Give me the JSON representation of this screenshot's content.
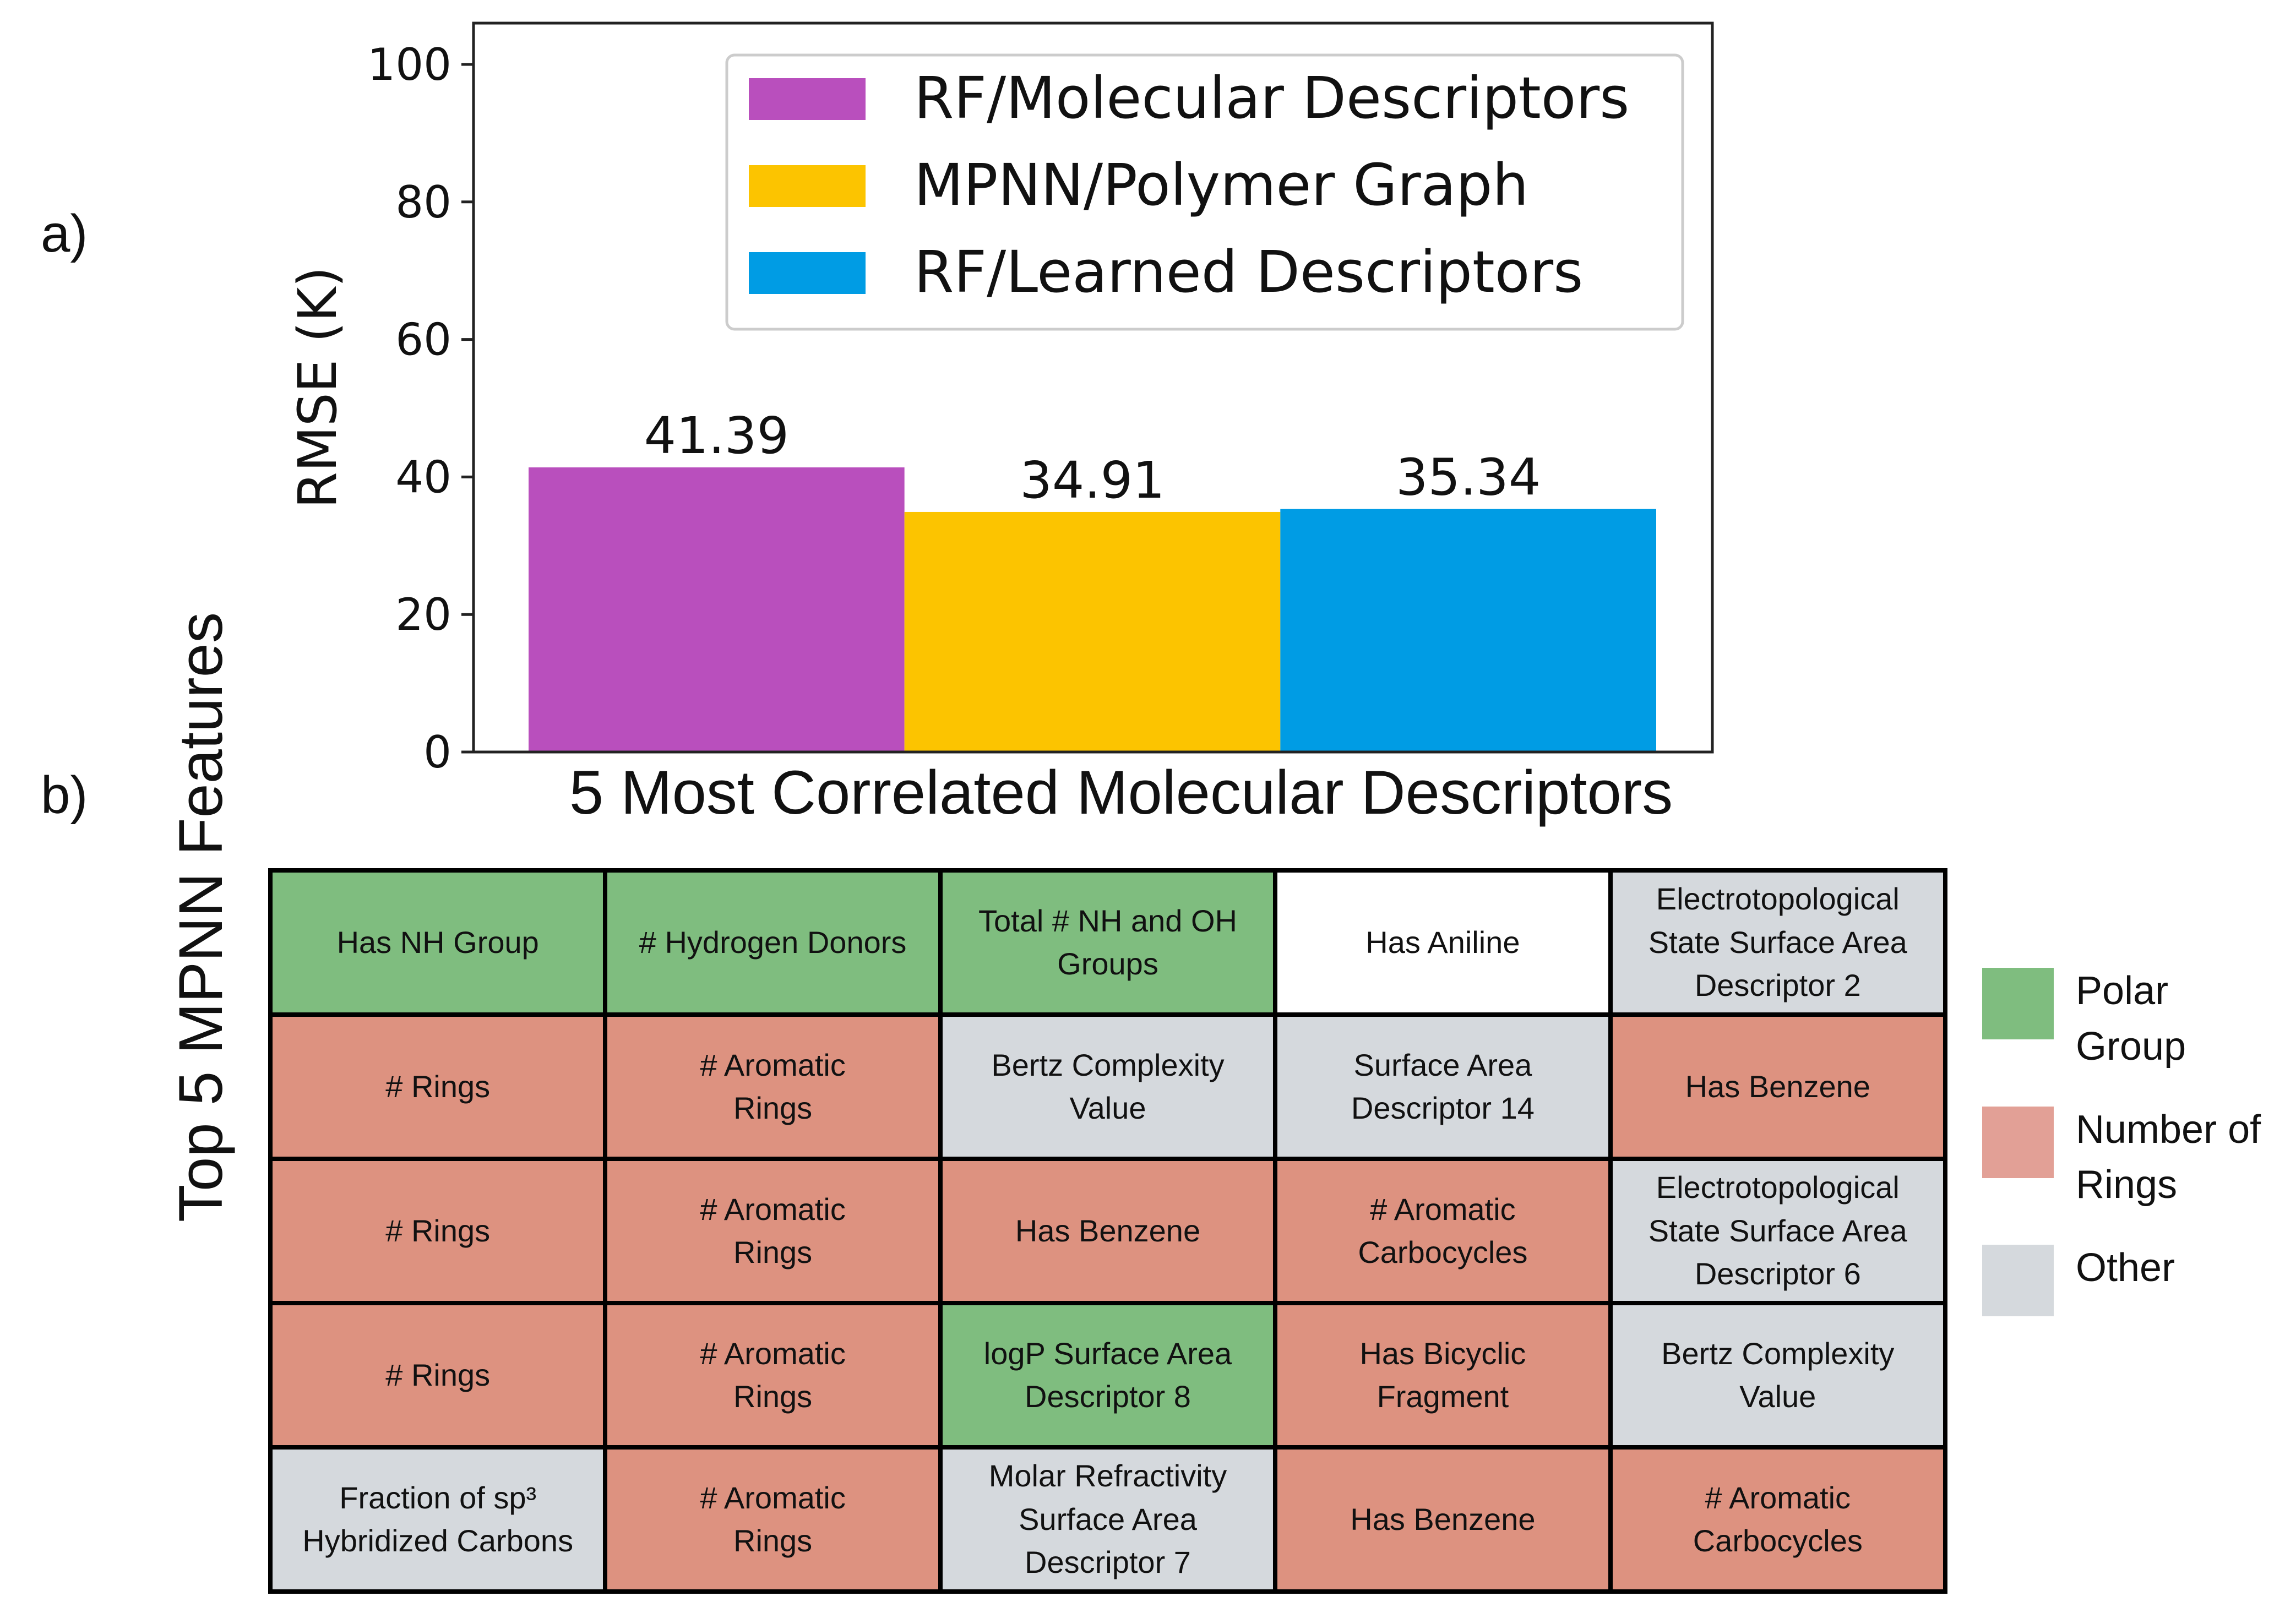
{
  "panels": {
    "a": "a)",
    "b": "b)"
  },
  "chart_data": {
    "type": "bar",
    "categories": [
      "RF/Molecular Descriptors",
      "MPNN/Polymer Graph",
      "RF/Learned Descriptors"
    ],
    "values": [
      41.39,
      34.91,
      35.34
    ],
    "value_labels": [
      "41.39",
      "34.91",
      "35.34"
    ],
    "colors": [
      "#b94fbd",
      "#fcc400",
      "#009ce4"
    ],
    "title": "",
    "xlabel": "",
    "ylabel": "RMSE (K)",
    "ylim": [
      0,
      106
    ],
    "yticks": [
      0,
      20,
      40,
      60,
      80,
      100
    ],
    "ytick_labels": [
      "0",
      "20",
      "40",
      "60",
      "80",
      "100"
    ],
    "grid": false,
    "legend_position": "top-right",
    "legend": [
      "RF/Molecular Descriptors",
      "MPNN/Polymer Graph",
      "RF/Learned Descriptors"
    ]
  },
  "table": {
    "title": "5 Most Correlated Molecular Descriptors",
    "row_title": "Top 5 MPNN Features",
    "rows": [
      [
        {
          "text": "Has NH Group",
          "category": "polar"
        },
        {
          "text": "# Hydrogen Donors",
          "category": "polar"
        },
        {
          "text": "Total # NH and OH\nGroups",
          "category": "polar"
        },
        {
          "text": "Has Aniline",
          "category": "none"
        },
        {
          "text": "Electrotopological\nState Surface Area\nDescriptor 2",
          "category": "other"
        }
      ],
      [
        {
          "text": "# Rings",
          "category": "rings"
        },
        {
          "text": "# Aromatic\nRings",
          "category": "rings"
        },
        {
          "text": "Bertz Complexity\nValue",
          "category": "other"
        },
        {
          "text": "Surface Area\nDescriptor 14",
          "category": "other"
        },
        {
          "text": "Has Benzene",
          "category": "rings"
        }
      ],
      [
        {
          "text": "# Rings",
          "category": "rings"
        },
        {
          "text": "# Aromatic\nRings",
          "category": "rings"
        },
        {
          "text": "Has Benzene",
          "category": "rings"
        },
        {
          "text": "# Aromatic\nCarbocycles",
          "category": "rings"
        },
        {
          "text": "Electrotopological\nState Surface Area\nDescriptor 6",
          "category": "other"
        }
      ],
      [
        {
          "text": "# Rings",
          "category": "rings"
        },
        {
          "text": "# Aromatic\nRings",
          "category": "rings"
        },
        {
          "text": "logP Surface Area\nDescriptor 8",
          "category": "polar"
        },
        {
          "text": "Has Bicyclic\nFragment",
          "category": "rings"
        },
        {
          "text": "Bertz Complexity\nValue",
          "category": "other"
        }
      ],
      [
        {
          "text": "Fraction of sp³\nHybridized Carbons",
          "category": "other"
        },
        {
          "text": "# Aromatic\nRings",
          "category": "rings"
        },
        {
          "text": "Molar Refractivity\nSurface Area\nDescriptor 7",
          "category": "other"
        },
        {
          "text": "Has Benzene",
          "category": "rings"
        },
        {
          "text": "# Aromatic\nCarbocycles",
          "category": "rings"
        }
      ]
    ],
    "legend": [
      {
        "label": "Polar\nGroup",
        "color": "#7fbd7f"
      },
      {
        "label": "Number of\nRings",
        "color": "#e2a096"
      },
      {
        "label": "Other",
        "color": "#d5d9dd"
      }
    ]
  }
}
